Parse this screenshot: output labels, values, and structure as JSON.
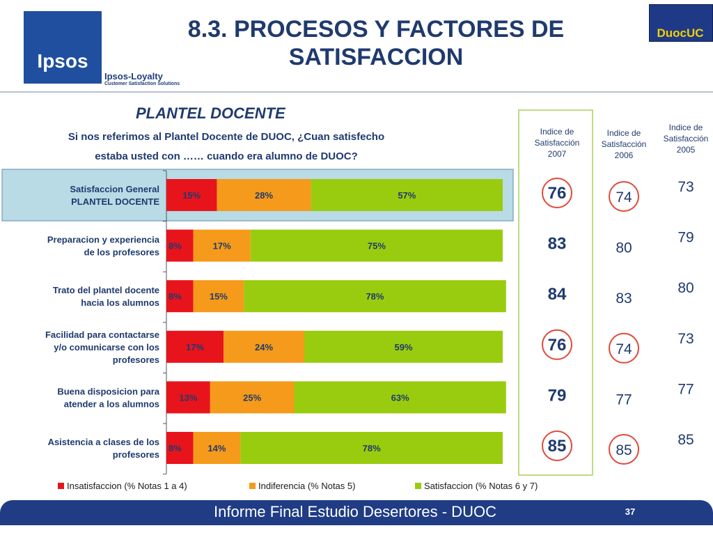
{
  "header": {
    "title_line1": "8.3. PROCESOS Y FACTORES DE",
    "title_line2": "SATISFACCION",
    "logo_text": "Ipsos",
    "loyalty_name": "Ipsos-Loyalty",
    "loyalty_tagline": "Customer Satisfaction Solutions",
    "partner_logo_text": "DuocUC"
  },
  "chart_data": {
    "type": "bar",
    "orientation": "horizontal-stacked-percent",
    "title": "PLANTEL DOCENTE",
    "question_line1": "Si nos referimos al Plantel Docente de DUOC, ¿Cuan satisfecho",
    "question_line2": "estaba usted con …… cuando era alumno de DUOC?",
    "categories": [
      [
        "Satisfaccion General",
        "PLANTEL DOCENTE"
      ],
      [
        "Preparacion y experiencia",
        "de los profesores"
      ],
      [
        "Trato del plantel docente",
        "hacia los alumnos"
      ],
      [
        "Facilidad para contactarse",
        "y/o comunicarse con los",
        "profesores"
      ],
      [
        "Buena disposicion para",
        "atender a los alumnos"
      ],
      [
        "Asistencia a clases de los",
        "profesores"
      ]
    ],
    "series": [
      {
        "name": "Insatisfaccion (% Notas 1 a 4)",
        "color": "#e8141c",
        "values": [
          15,
          8,
          8,
          17,
          13,
          8
        ]
      },
      {
        "name": "Indiferencia (% Notas 5)",
        "color": "#f59a1a",
        "values": [
          28,
          17,
          15,
          24,
          25,
          14
        ]
      },
      {
        "name": "Satisfaccion (% Notas 6 y 7)",
        "color": "#99cc0e",
        "values": [
          57,
          75,
          78,
          59,
          63,
          78
        ]
      }
    ],
    "value_labels": [
      [
        "15%",
        "28%",
        "57%"
      ],
      [
        "8%",
        "17%",
        "75%"
      ],
      [
        "8%",
        "15%",
        "78%"
      ],
      [
        "17%",
        "24%",
        "59%"
      ],
      [
        "13%",
        "25%",
        "63%"
      ],
      [
        "8%",
        "14%",
        "78%"
      ]
    ],
    "highlighted_category": 0,
    "legend_position": "bottom",
    "index_columns": [
      {
        "label_line1": "Indice de",
        "label_line2": "Satisfacción",
        "year": "2007",
        "values": [
          76,
          83,
          84,
          76,
          79,
          85
        ],
        "circled": [
          0,
          3,
          5
        ],
        "bold": true
      },
      {
        "label_line1": "Indice de",
        "label_line2": "Satisfacción",
        "year": "2006",
        "values": [
          74,
          80,
          83,
          74,
          77,
          85
        ],
        "circled": [
          0,
          3,
          5
        ],
        "bold": false
      },
      {
        "label_line1": "Indice de",
        "label_line2": "Satisfacción",
        "year": "2005",
        "values": [
          73,
          79,
          80,
          73,
          77,
          85
        ],
        "circled": [],
        "bold": false
      }
    ]
  },
  "footer": {
    "text": "Informe Final Estudio Desertores - DUOC",
    "page": "37"
  },
  "colors": {
    "title": "#1f3a6e",
    "footer_bar": "#1f3c85",
    "circle": "#e04a3a",
    "highlight_fill": "#b8dbe6",
    "column_border": "#a8cf5a"
  }
}
